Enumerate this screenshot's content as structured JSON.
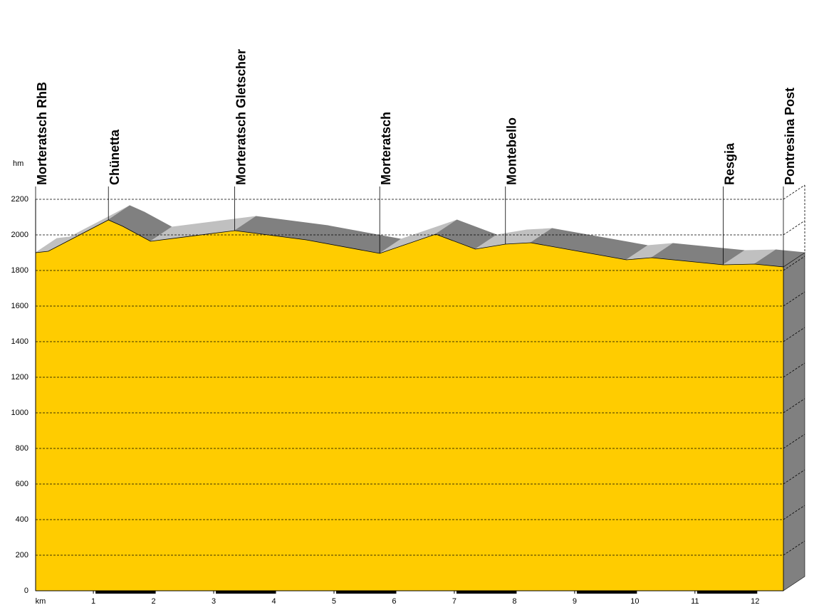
{
  "chart_data": {
    "type": "area",
    "y_label": "hm",
    "x_label": "km",
    "x": [
      0.04,
      0.25,
      1.25,
      1.49,
      1.95,
      3.35,
      4.54,
      5.76,
      6.69,
      7.35,
      7.85,
      8.27,
      9.86,
      10.28,
      11.47,
      11.99,
      12.47
    ],
    "values": [
      1900,
      1908,
      2084,
      2048,
      1964,
      2024,
      1972,
      1896,
      2004,
      1920,
      1948,
      1956,
      1860,
      1872,
      1832,
      1836,
      1820
    ],
    "color": "#ffcc00",
    "rise_color": "#c0c0c0",
    "fall_color": "#808080",
    "xlim": [
      0.04,
      12.47
    ],
    "ylim": [
      0,
      2200
    ],
    "xticks": [
      1,
      2,
      3,
      4,
      5,
      6,
      7,
      8,
      9,
      10,
      11,
      12
    ],
    "yticks": [
      0,
      200,
      400,
      600,
      800,
      1000,
      1200,
      1400,
      1600,
      1800,
      2000,
      2200
    ],
    "grid": true,
    "stations": [
      {
        "name": "Morteratsch RhB",
        "km": 0.04
      },
      {
        "name": "Chünetta",
        "km": 1.25
      },
      {
        "name": "Morteratsch Gletscher",
        "km": 3.35
      },
      {
        "name": "Morteratsch",
        "km": 5.76
      },
      {
        "name": "Montebello",
        "km": 7.85
      },
      {
        "name": "Resgia",
        "km": 11.47
      },
      {
        "name": "Pontresina Post",
        "km": 12.47
      }
    ]
  }
}
